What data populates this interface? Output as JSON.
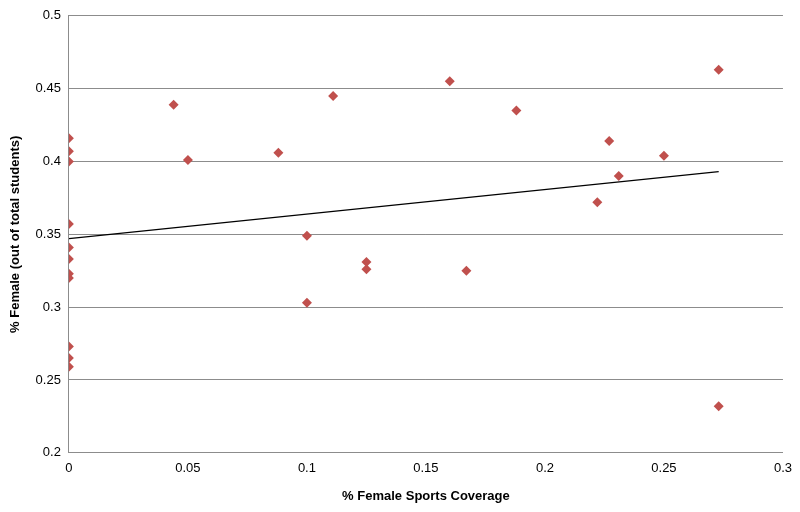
{
  "chart_data": {
    "type": "scatter",
    "x_label": "% Female Sports Coverage",
    "y_label": "% Female (out of total students)",
    "series": [
      {
        "type": "scatter",
        "marker": "diamond",
        "color": "#c0504d",
        "x": [
          0,
          0,
          0,
          0,
          0,
          0,
          0,
          0,
          0,
          0,
          0,
          0.044,
          0.05,
          0.088,
          0.1,
          0.1,
          0.111,
          0.125,
          0.125,
          0.16,
          0.167,
          0.188,
          0.222,
          0.227,
          0.231,
          0.25,
          0.273,
          0.273
        ],
        "values": [
          0.416,
          0.407,
          0.4,
          0.357,
          0.341,
          0.333,
          0.323,
          0.32,
          0.273,
          0.265,
          0.259,
          0.439,
          0.401,
          0.406,
          0.349,
          0.303,
          0.445,
          0.331,
          0.326,
          0.455,
          0.325,
          0.435,
          0.372,
          0.414,
          0.39,
          0.404,
          0.463,
          0.232
        ]
      },
      {
        "type": "line",
        "line_style": "solid",
        "color": "#000000",
        "x": [
          0,
          0.273
        ],
        "values": [
          0.347,
          0.393
        ]
      }
    ],
    "xlim": [
      0,
      0.3
    ],
    "xticks": [
      0,
      0.05,
      0.1,
      0.15,
      0.2,
      0.25,
      0.3
    ],
    "ylim": [
      0.2,
      0.5
    ],
    "yticks": [
      0.2,
      0.25,
      0.3,
      0.35,
      0.4,
      0.45,
      0.5
    ],
    "grid": "y"
  }
}
